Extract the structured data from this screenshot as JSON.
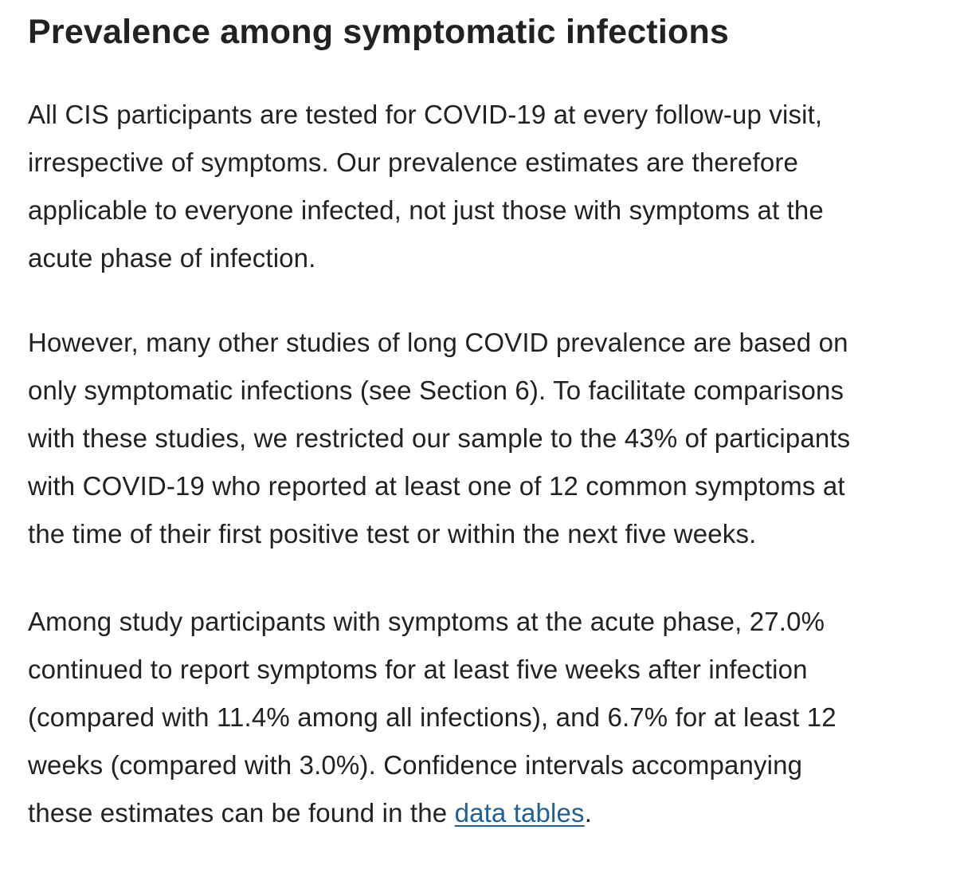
{
  "section": {
    "heading": "Prevalence among symptomatic infections",
    "paragraph_1": {
      "lines": [
        "All CIS participants are tested for COVID-19 at every follow-up visit,",
        "irrespective of symptoms. Our prevalence estimates are therefore",
        "applicable to everyone infected, not just those with symptoms at the",
        "acute phase of infection."
      ]
    },
    "paragraph_2": {
      "lines": [
        "However, many other studies of long COVID prevalence are based on",
        "only symptomatic infections (see Section 6). To facilitate comparisons",
        "with these studies, we restricted our sample to the 43% of participants",
        "with COVID-19 who reported at least one of 12 common symptoms at",
        "the time of their first positive test or within the next five weeks."
      ]
    },
    "paragraph_3": {
      "lines": [
        "Among study participants with symptoms at the acute phase, 27.0%",
        "continued to report symptoms for at least five weeks after infection",
        "(compared with 11.4% among all infections), and 6.7% for at least 12",
        "weeks (compared with 3.0%). Confidence intervals accompanying"
      ],
      "last_line_before_link": "these estimates can be found in the ",
      "link_text": "data tables",
      "last_line_after_link": "."
    }
  },
  "colors": {
    "text": "#222222",
    "link": "#206095",
    "background": "#ffffff"
  }
}
